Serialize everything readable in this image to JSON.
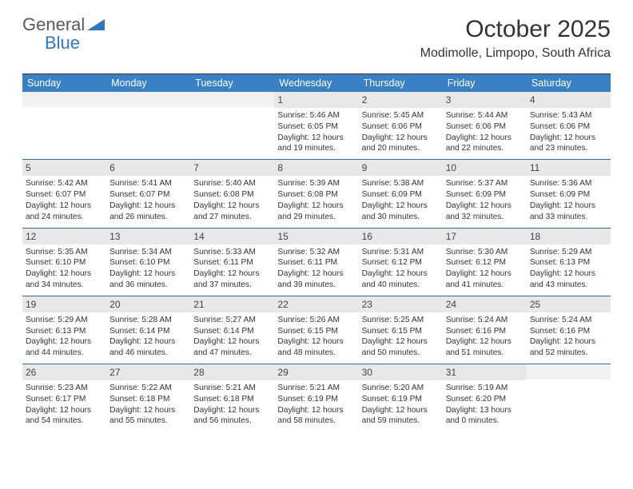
{
  "logo": {
    "text1": "General",
    "text2": "Blue"
  },
  "title": "October 2025",
  "location": "Modimolle, Limpopo, South Africa",
  "dayNames": [
    "Sunday",
    "Monday",
    "Tuesday",
    "Wednesday",
    "Thursday",
    "Friday",
    "Saturday"
  ],
  "colors": {
    "headerBg": "#3a80c4",
    "headerText": "#ffffff",
    "dayNumBg": "#e8e8e8",
    "weekBorder": "#3a6a9a",
    "logoBlue": "#2f78bd",
    "logoGray": "#5a5a5a"
  },
  "weeks": [
    [
      {
        "n": "",
        "sunrise": "",
        "sunset": "",
        "dl1": "",
        "dl2": ""
      },
      {
        "n": "",
        "sunrise": "",
        "sunset": "",
        "dl1": "",
        "dl2": ""
      },
      {
        "n": "",
        "sunrise": "",
        "sunset": "",
        "dl1": "",
        "dl2": ""
      },
      {
        "n": "1",
        "sunrise": "Sunrise: 5:46 AM",
        "sunset": "Sunset: 6:05 PM",
        "dl1": "Daylight: 12 hours",
        "dl2": "and 19 minutes."
      },
      {
        "n": "2",
        "sunrise": "Sunrise: 5:45 AM",
        "sunset": "Sunset: 6:06 PM",
        "dl1": "Daylight: 12 hours",
        "dl2": "and 20 minutes."
      },
      {
        "n": "3",
        "sunrise": "Sunrise: 5:44 AM",
        "sunset": "Sunset: 6:06 PM",
        "dl1": "Daylight: 12 hours",
        "dl2": "and 22 minutes."
      },
      {
        "n": "4",
        "sunrise": "Sunrise: 5:43 AM",
        "sunset": "Sunset: 6:06 PM",
        "dl1": "Daylight: 12 hours",
        "dl2": "and 23 minutes."
      }
    ],
    [
      {
        "n": "5",
        "sunrise": "Sunrise: 5:42 AM",
        "sunset": "Sunset: 6:07 PM",
        "dl1": "Daylight: 12 hours",
        "dl2": "and 24 minutes."
      },
      {
        "n": "6",
        "sunrise": "Sunrise: 5:41 AM",
        "sunset": "Sunset: 6:07 PM",
        "dl1": "Daylight: 12 hours",
        "dl2": "and 26 minutes."
      },
      {
        "n": "7",
        "sunrise": "Sunrise: 5:40 AM",
        "sunset": "Sunset: 6:08 PM",
        "dl1": "Daylight: 12 hours",
        "dl2": "and 27 minutes."
      },
      {
        "n": "8",
        "sunrise": "Sunrise: 5:39 AM",
        "sunset": "Sunset: 6:08 PM",
        "dl1": "Daylight: 12 hours",
        "dl2": "and 29 minutes."
      },
      {
        "n": "9",
        "sunrise": "Sunrise: 5:38 AM",
        "sunset": "Sunset: 6:09 PM",
        "dl1": "Daylight: 12 hours",
        "dl2": "and 30 minutes."
      },
      {
        "n": "10",
        "sunrise": "Sunrise: 5:37 AM",
        "sunset": "Sunset: 6:09 PM",
        "dl1": "Daylight: 12 hours",
        "dl2": "and 32 minutes."
      },
      {
        "n": "11",
        "sunrise": "Sunrise: 5:36 AM",
        "sunset": "Sunset: 6:09 PM",
        "dl1": "Daylight: 12 hours",
        "dl2": "and 33 minutes."
      }
    ],
    [
      {
        "n": "12",
        "sunrise": "Sunrise: 5:35 AM",
        "sunset": "Sunset: 6:10 PM",
        "dl1": "Daylight: 12 hours",
        "dl2": "and 34 minutes."
      },
      {
        "n": "13",
        "sunrise": "Sunrise: 5:34 AM",
        "sunset": "Sunset: 6:10 PM",
        "dl1": "Daylight: 12 hours",
        "dl2": "and 36 minutes."
      },
      {
        "n": "14",
        "sunrise": "Sunrise: 5:33 AM",
        "sunset": "Sunset: 6:11 PM",
        "dl1": "Daylight: 12 hours",
        "dl2": "and 37 minutes."
      },
      {
        "n": "15",
        "sunrise": "Sunrise: 5:32 AM",
        "sunset": "Sunset: 6:11 PM",
        "dl1": "Daylight: 12 hours",
        "dl2": "and 39 minutes."
      },
      {
        "n": "16",
        "sunrise": "Sunrise: 5:31 AM",
        "sunset": "Sunset: 6:12 PM",
        "dl1": "Daylight: 12 hours",
        "dl2": "and 40 minutes."
      },
      {
        "n": "17",
        "sunrise": "Sunrise: 5:30 AM",
        "sunset": "Sunset: 6:12 PM",
        "dl1": "Daylight: 12 hours",
        "dl2": "and 41 minutes."
      },
      {
        "n": "18",
        "sunrise": "Sunrise: 5:29 AM",
        "sunset": "Sunset: 6:13 PM",
        "dl1": "Daylight: 12 hours",
        "dl2": "and 43 minutes."
      }
    ],
    [
      {
        "n": "19",
        "sunrise": "Sunrise: 5:29 AM",
        "sunset": "Sunset: 6:13 PM",
        "dl1": "Daylight: 12 hours",
        "dl2": "and 44 minutes."
      },
      {
        "n": "20",
        "sunrise": "Sunrise: 5:28 AM",
        "sunset": "Sunset: 6:14 PM",
        "dl1": "Daylight: 12 hours",
        "dl2": "and 46 minutes."
      },
      {
        "n": "21",
        "sunrise": "Sunrise: 5:27 AM",
        "sunset": "Sunset: 6:14 PM",
        "dl1": "Daylight: 12 hours",
        "dl2": "and 47 minutes."
      },
      {
        "n": "22",
        "sunrise": "Sunrise: 5:26 AM",
        "sunset": "Sunset: 6:15 PM",
        "dl1": "Daylight: 12 hours",
        "dl2": "and 48 minutes."
      },
      {
        "n": "23",
        "sunrise": "Sunrise: 5:25 AM",
        "sunset": "Sunset: 6:15 PM",
        "dl1": "Daylight: 12 hours",
        "dl2": "and 50 minutes."
      },
      {
        "n": "24",
        "sunrise": "Sunrise: 5:24 AM",
        "sunset": "Sunset: 6:16 PM",
        "dl1": "Daylight: 12 hours",
        "dl2": "and 51 minutes."
      },
      {
        "n": "25",
        "sunrise": "Sunrise: 5:24 AM",
        "sunset": "Sunset: 6:16 PM",
        "dl1": "Daylight: 12 hours",
        "dl2": "and 52 minutes."
      }
    ],
    [
      {
        "n": "26",
        "sunrise": "Sunrise: 5:23 AM",
        "sunset": "Sunset: 6:17 PM",
        "dl1": "Daylight: 12 hours",
        "dl2": "and 54 minutes."
      },
      {
        "n": "27",
        "sunrise": "Sunrise: 5:22 AM",
        "sunset": "Sunset: 6:18 PM",
        "dl1": "Daylight: 12 hours",
        "dl2": "and 55 minutes."
      },
      {
        "n": "28",
        "sunrise": "Sunrise: 5:21 AM",
        "sunset": "Sunset: 6:18 PM",
        "dl1": "Daylight: 12 hours",
        "dl2": "and 56 minutes."
      },
      {
        "n": "29",
        "sunrise": "Sunrise: 5:21 AM",
        "sunset": "Sunset: 6:19 PM",
        "dl1": "Daylight: 12 hours",
        "dl2": "and 58 minutes."
      },
      {
        "n": "30",
        "sunrise": "Sunrise: 5:20 AM",
        "sunset": "Sunset: 6:19 PM",
        "dl1": "Daylight: 12 hours",
        "dl2": "and 59 minutes."
      },
      {
        "n": "31",
        "sunrise": "Sunrise: 5:19 AM",
        "sunset": "Sunset: 6:20 PM",
        "dl1": "Daylight: 13 hours",
        "dl2": "and 0 minutes."
      },
      {
        "n": "",
        "sunrise": "",
        "sunset": "",
        "dl1": "",
        "dl2": ""
      }
    ]
  ]
}
